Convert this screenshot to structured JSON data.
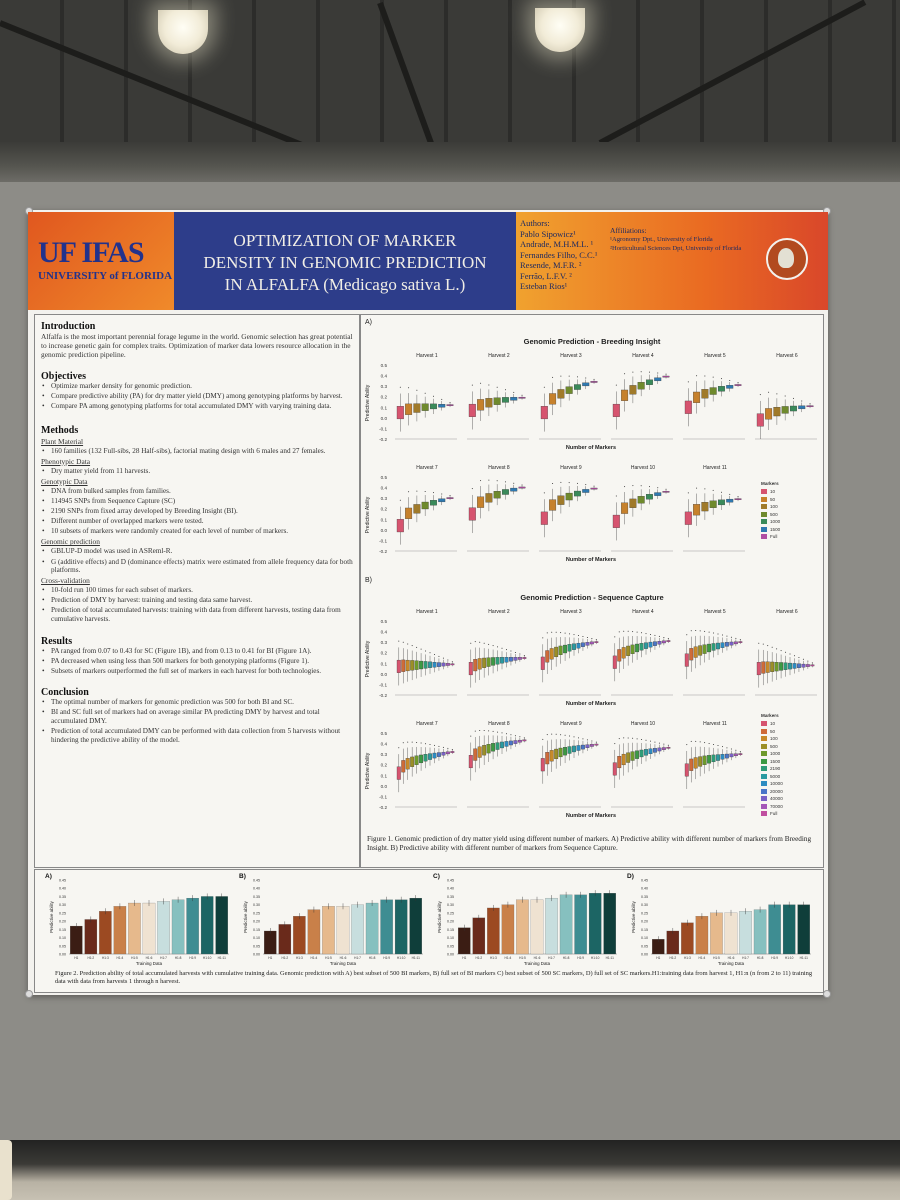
{
  "header": {
    "logo_main": "UF IFAS",
    "logo_sub": "UNIVERSITY of FLORIDA",
    "title_line1": "OPTIMIZATION OF MARKER",
    "title_line2": "DENSITY IN GENOMIC PREDICTION",
    "title_line3": "IN ALFALFA (Medicago sativa L.)",
    "authors_label": "Authors:",
    "authors": [
      "Pablo Sipowicz¹",
      "Andrade, M.H.M.L. ¹",
      "Fernandes Filho, C.C.¹",
      "Resende, M.F.R. ²",
      "Ferrão, L.F.V. ²",
      "Esteban Rios¹"
    ],
    "affiliations_label": "Affiliations:",
    "affiliations": [
      "¹Agronomy Dpt., University of Florida",
      "²Horticultural Sciences Dpt, University of Florida"
    ]
  },
  "left": {
    "intro_heading": "Introduction",
    "intro_text": "Alfalfa is the most important perennial forage legume in the world. Genomic selection has great potential to increase genetic gain for complex traits. Optimization of marker data lowers resource allocation in the genomic prediction pipeline.",
    "objectives_heading": "Objectives",
    "objectives": [
      "Optimize marker density for genomic prediction.",
      "Compare predictive ability (PA) for dry matter yield (DMY) among genotyping platforms by harvest.",
      "Compare PA among genotyping platforms for total accumulated DMY with varying training data."
    ],
    "methods_heading": "Methods",
    "plant_material_label": "Plant Material",
    "plant_material": [
      "160 families (132 Full-sibs, 28 Half-sibs), factorial mating design with 6 males and 27 females."
    ],
    "phenotypic_label": "Phenotypic Data",
    "phenotypic": [
      "Dry matter yield from 11 harvests."
    ],
    "genotypic_label": "Genotypic Data",
    "genotypic": [
      "DNA from bulked samples from families.",
      "114945 SNPs from Sequence Capture (SC)",
      "2190 SNPs from fixed array developed by Breeding Insight (BI).",
      "Different number of overlapped markers were tested.",
      "10 subsets of markers were randomly created for each level of number of markers."
    ],
    "genomic_label": "Genomic prediction",
    "genomic": [
      "GBLUP-D model was used in ASReml-R.",
      "G (additive effects) and D (dominance effects) matrix were estimated from allele frequency data for both platforms."
    ],
    "cv_label": "Cross-validation",
    "cv": [
      "10-fold run 100 times for each subset of markers.",
      "Prediction of DMY by harvest: training and testing data same harvest.",
      "Prediction of total accumulated harvests: training with data from different harvests, testing data from cumulative harvests."
    ],
    "results_heading": "Results",
    "results": [
      "PA ranged from 0.07 to 0.43 for SC (Figure 1B), and from 0.13 to 0.41 for BI (Figure 1A).",
      "PA decreased when using less than 500 markers for both genotyping platforms (Figure 1).",
      "Subsets of markers outperformed the full set of markers in each harvest for both technologies."
    ],
    "conclusion_heading": "Conclusion",
    "conclusion": [
      "The optimal number of markers for genomic prediction was 500 for both BI and SC.",
      "BI and SC full set of markers had on average similar PA predicting DMY by harvest and total accumulated DMY.",
      "Prediction of total accumulated DMY can be performed with data collection from 5 harvests without hindering the predictive ability of the model."
    ]
  },
  "figure1": {
    "panel_a": "A)",
    "panel_b": "B)",
    "title_a": "Genomic Prediction - Breeding Insight",
    "title_b": "Genomic Prediction - Sequence Capture",
    "ylabel": "Predictive Ability",
    "xlabel": "Number of Markers",
    "harvests": [
      "Harvest 1",
      "Harvest 2",
      "Harvest 3",
      "Harvest 4",
      "Harvest 5",
      "Harvest 6",
      "Harvest 7",
      "Harvest 8",
      "Harvest 9",
      "Harvest 10",
      "Harvest 11"
    ],
    "yticks": [
      "0.5",
      "0.4",
      "0.3",
      "0.2",
      "0.1",
      "0.0",
      "-0.1",
      "-0.2"
    ],
    "legend_title": "Markers",
    "legend_a": [
      "10",
      "50",
      "100",
      "500",
      "1000",
      "1500",
      "Full"
    ],
    "legend_b": [
      "10",
      "50",
      "100",
      "500",
      "1000",
      "1500",
      "2190",
      "5000",
      "10000",
      "20000",
      "40000",
      "70000",
      "Full"
    ],
    "caption": "Figure 1. Genomic prediction of dry matter yield using different number of markers. A) Predictive ability with different number of markers from Breeding Insight. B) Predictive ability with different number of markers from Sequence Capture."
  },
  "figure2": {
    "labels": [
      "A)",
      "B)",
      "C)",
      "D)"
    ],
    "ylabel": "Predictive ability",
    "xlabel": "Training Data",
    "yticks": [
      "0.45",
      "0.40",
      "0.35",
      "0.30",
      "0.25",
      "0.20",
      "0.15",
      "0.10",
      "0.05",
      "0.00"
    ],
    "categories": [
      "H1",
      "H1:2",
      "H1:3",
      "H1:4",
      "H1:5",
      "H1:6",
      "H1:7",
      "H1:8",
      "H1:9",
      "H1:10",
      "H1:11"
    ],
    "caption": "Figure 2. Prediction ability of total accumulated harvests with cumulative training data. Genomic prediction with A) best subset of 500 BI markers, B) full set of BI markers C) best subset of 500 SC markers, D) full set of SC markers.H1:training data from harvest 1, H1:n (n from 2 to 11) training data with data from harvests 1 through n harvest."
  },
  "chart_data": [
    {
      "type": "bar",
      "title": "A)",
      "ylabel": "Predictive ability",
      "xlabel": "Training Data",
      "categories": [
        "H1",
        "H1:2",
        "H1:3",
        "H1:4",
        "H1:5",
        "H1:6",
        "H1:7",
        "H1:8",
        "H1:9",
        "H1:10",
        "H1:11"
      ],
      "values": [
        0.17,
        0.21,
        0.26,
        0.29,
        0.31,
        0.31,
        0.32,
        0.33,
        0.34,
        0.35,
        0.35
      ],
      "ylim": [
        0,
        0.45
      ]
    },
    {
      "type": "bar",
      "title": "B)",
      "ylabel": "Predictive ability",
      "xlabel": "Training Data",
      "categories": [
        "H1",
        "H1:2",
        "H1:3",
        "H1:4",
        "H1:5",
        "H1:6",
        "H1:7",
        "H1:8",
        "H1:9",
        "H1:10",
        "H1:11"
      ],
      "values": [
        0.14,
        0.18,
        0.23,
        0.27,
        0.29,
        0.29,
        0.3,
        0.31,
        0.33,
        0.33,
        0.34
      ],
      "ylim": [
        0,
        0.45
      ]
    },
    {
      "type": "bar",
      "title": "C)",
      "ylabel": "Predictive ability",
      "xlabel": "Training Data",
      "categories": [
        "H1",
        "H1:2",
        "H1:3",
        "H1:4",
        "H1:5",
        "H1:6",
        "H1:7",
        "H1:8",
        "H1:9",
        "H1:10",
        "H1:11"
      ],
      "values": [
        0.16,
        0.22,
        0.28,
        0.3,
        0.33,
        0.33,
        0.34,
        0.36,
        0.36,
        0.37,
        0.37
      ],
      "ylim": [
        0,
        0.45
      ]
    },
    {
      "type": "bar",
      "title": "D)",
      "ylabel": "Predictive ability",
      "xlabel": "Training Data",
      "categories": [
        "H1",
        "H1:2",
        "H1:3",
        "H1:4",
        "H1:5",
        "H1:6",
        "H1:7",
        "H1:8",
        "H1:9",
        "H1:10",
        "H1:11"
      ],
      "values": [
        0.09,
        0.14,
        0.19,
        0.23,
        0.25,
        0.25,
        0.26,
        0.27,
        0.3,
        0.3,
        0.3
      ],
      "ylim": [
        0,
        0.45
      ]
    }
  ],
  "colors": {
    "bi_markers": [
      "#d6546f",
      "#c6812c",
      "#a07a2a",
      "#6f8a2d",
      "#3a8a5a",
      "#2f79b0",
      "#b04fa3"
    ],
    "sc_markers": [
      "#d6546f",
      "#cf6b39",
      "#c88a2a",
      "#9c8f27",
      "#6e9a2c",
      "#3c9a43",
      "#2f9c78",
      "#2a9aa0",
      "#2d8cc1",
      "#4a76c8",
      "#7a62c6",
      "#a456b8",
      "#c04fa0"
    ],
    "fig2_bars": [
      "#3b1d14",
      "#6a2a1b",
      "#9c4a22",
      "#c98049",
      "#e6b98c",
      "#efe2d1",
      "#c7dede",
      "#86c0bf",
      "#3e8d92",
      "#1c6564",
      "#0f3e3a"
    ]
  }
}
